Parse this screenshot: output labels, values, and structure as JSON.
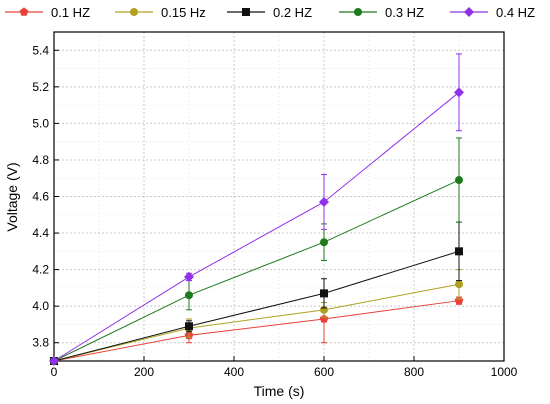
{
  "chart_data": {
    "type": "line",
    "xlabel": "Time (s)",
    "ylabel": "Voltage (V)",
    "xlim": [
      0,
      1000
    ],
    "ylim": [
      3.7,
      5.5
    ],
    "x_ticks": [
      0,
      200,
      400,
      600,
      800,
      1000
    ],
    "y_ticks": [
      3.8,
      4.0,
      4.2,
      4.4,
      4.6,
      4.8,
      5.0,
      5.2,
      5.4
    ],
    "grid": true,
    "legend_position": "top",
    "x": [
      0,
      300,
      600,
      900
    ],
    "series": [
      {
        "name": "0.1 HZ",
        "color": "#e8403a",
        "marker": "pentagon",
        "values": [
          3.7,
          3.84,
          3.93,
          4.03
        ],
        "errors": [
          0,
          0.04,
          0.13,
          0.02
        ]
      },
      {
        "name": "0.15 Hz",
        "color": "#b0a020",
        "marker": "circle",
        "values": [
          3.7,
          3.88,
          3.98,
          4.12
        ],
        "errors": [
          0,
          0.05,
          0.04,
          0.08
        ]
      },
      {
        "name": "0.2 HZ",
        "color": "#111111",
        "marker": "square",
        "values": [
          3.7,
          3.89,
          4.07,
          4.3
        ],
        "errors": [
          0,
          0.03,
          0.08,
          0.16
        ]
      },
      {
        "name": "0.3 HZ",
        "color": "#1e7a1e",
        "marker": "circle",
        "values": [
          3.7,
          4.06,
          4.35,
          4.69
        ],
        "errors": [
          0,
          0.08,
          0.1,
          0.23
        ]
      },
      {
        "name": "0.4 HZ",
        "color": "#9030e8",
        "marker": "diamond",
        "values": [
          3.7,
          4.16,
          4.57,
          5.17
        ],
        "errors": [
          0,
          0.02,
          0.15,
          0.21
        ]
      }
    ]
  }
}
